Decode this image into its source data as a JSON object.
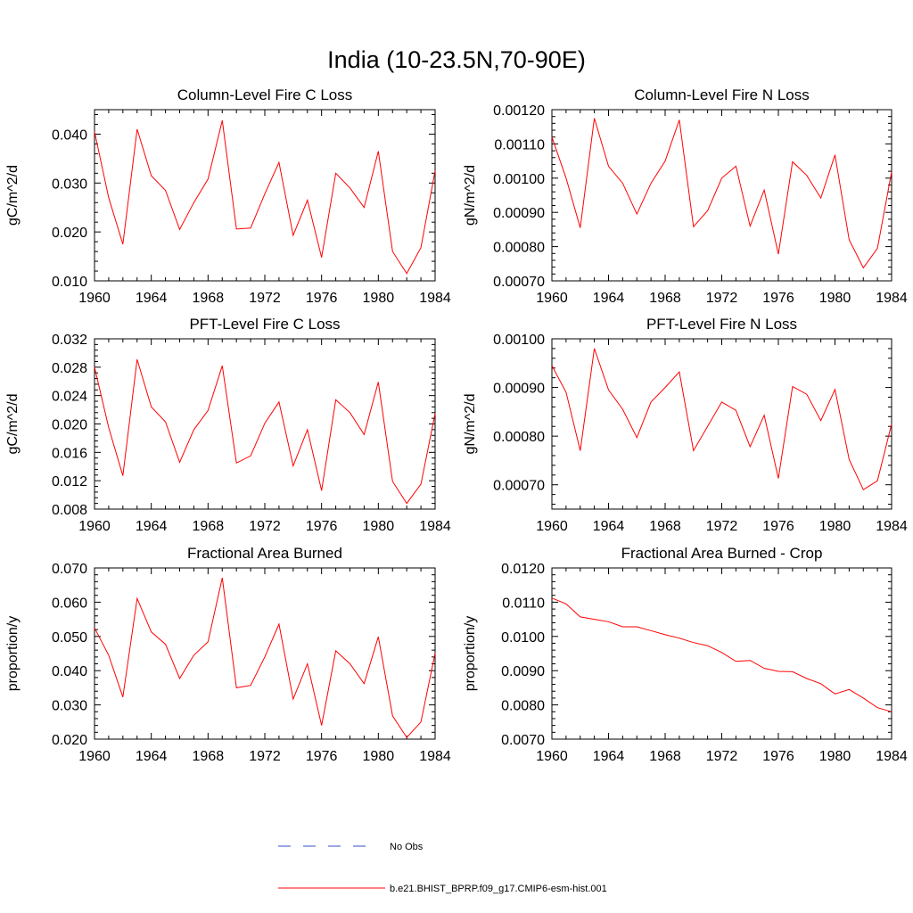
{
  "page_title": "India (10-23.5N,70-90E)",
  "colors": {
    "model": "#ff0000",
    "obs": "#3a4fc4",
    "axis": "#000000"
  },
  "legend": {
    "obs_label": "No Obs",
    "model_label": "b.e21.BHIST_BPRP.f09_g17.CMIP6-esm-hist.001"
  },
  "chart_data": [
    {
      "type": "line",
      "title": "Column-Level Fire C Loss",
      "ylabel": "gC/m^2/d",
      "xlim": [
        1960,
        1984
      ],
      "ylim": [
        0.01,
        0.045
      ],
      "x_ticks": [
        "1960",
        "1964",
        "1968",
        "1972",
        "1976",
        "1980",
        "1984"
      ],
      "y_ticks": [
        "0.010",
        "0.020",
        "0.030",
        "0.040"
      ],
      "y_tick_values": [
        0.01,
        0.02,
        0.03,
        0.04
      ],
      "x": [
        1960,
        1961,
        1962,
        1963,
        1964,
        1965,
        1966,
        1967,
        1968,
        1969,
        1970,
        1971,
        1972,
        1973,
        1974,
        1975,
        1976,
        1977,
        1978,
        1979,
        1980,
        1981,
        1982,
        1983,
        1984
      ],
      "series": [
        {
          "name": "b.e21.BHIST_BPRP.f09_g17.CMIP6-esm-hist.001",
          "values": [
            0.0405,
            0.027,
            0.0175,
            0.041,
            0.0315,
            0.0285,
            0.0205,
            0.026,
            0.0308,
            0.0428,
            0.0206,
            0.0208,
            0.0278,
            0.0342,
            0.0193,
            0.0265,
            0.0148,
            0.032,
            0.029,
            0.025,
            0.0365,
            0.016,
            0.0115,
            0.0168,
            0.0325
          ]
        }
      ]
    },
    {
      "type": "line",
      "title": "Column-Level Fire N Loss",
      "ylabel": "gN/m^2/d",
      "xlim": [
        1960,
        1984
      ],
      "ylim": [
        0.0007,
        0.0012
      ],
      "x_ticks": [
        "1960",
        "1964",
        "1968",
        "1972",
        "1976",
        "1980",
        "1984"
      ],
      "y_ticks": [
        "0.00070",
        "0.00080",
        "0.00090",
        "0.00100",
        "0.00110",
        "0.00120"
      ],
      "y_tick_values": [
        0.0007,
        0.0008,
        0.0009,
        0.001,
        0.0011,
        0.0012
      ],
      "x": [
        1960,
        1961,
        1962,
        1963,
        1964,
        1965,
        1966,
        1967,
        1968,
        1969,
        1970,
        1971,
        1972,
        1973,
        1974,
        1975,
        1976,
        1977,
        1978,
        1979,
        1980,
        1981,
        1982,
        1983,
        1984
      ],
      "series": [
        {
          "name": "b.e21.BHIST_BPRP.f09_g17.CMIP6-esm-hist.001",
          "values": [
            0.00112,
            0.001,
            0.000855,
            0.001175,
            0.001035,
            0.000985,
            0.000895,
            0.000985,
            0.00105,
            0.00117,
            0.000858,
            0.000905,
            0.001,
            0.001035,
            0.00086,
            0.000965,
            0.000778,
            0.001048,
            0.001008,
            0.000942,
            0.001068,
            0.00082,
            0.000738,
            0.000795,
            0.001018
          ]
        }
      ]
    },
    {
      "type": "line",
      "title": "PFT-Level Fire C Loss",
      "ylabel": "gC/m^2/d",
      "xlim": [
        1960,
        1984
      ],
      "ylim": [
        0.008,
        0.032
      ],
      "x_ticks": [
        "1960",
        "1964",
        "1968",
        "1972",
        "1976",
        "1980",
        "1984"
      ],
      "y_ticks": [
        "0.008",
        "0.012",
        "0.016",
        "0.020",
        "0.024",
        "0.028",
        "0.032"
      ],
      "y_tick_values": [
        0.008,
        0.012,
        0.016,
        0.02,
        0.024,
        0.028,
        0.032
      ],
      "x": [
        1960,
        1961,
        1962,
        1963,
        1964,
        1965,
        1966,
        1967,
        1968,
        1969,
        1970,
        1971,
        1972,
        1973,
        1974,
        1975,
        1976,
        1977,
        1978,
        1979,
        1980,
        1981,
        1982,
        1983,
        1984
      ],
      "series": [
        {
          "name": "b.e21.BHIST_BPRP.f09_g17.CMIP6-esm-hist.001",
          "values": [
            0.028,
            0.0195,
            0.0127,
            0.0291,
            0.0224,
            0.0203,
            0.0146,
            0.0192,
            0.0219,
            0.0282,
            0.0145,
            0.0155,
            0.0201,
            0.0231,
            0.0141,
            0.0192,
            0.0106,
            0.0234,
            0.0216,
            0.0185,
            0.0259,
            0.0119,
            0.0088,
            0.0115,
            0.0215
          ]
        }
      ]
    },
    {
      "type": "line",
      "title": "PFT-Level Fire N Loss",
      "ylabel": "gN/m^2/d",
      "xlim": [
        1960,
        1984
      ],
      "ylim": [
        0.00065,
        0.001
      ],
      "x_ticks": [
        "1960",
        "1964",
        "1968",
        "1972",
        "1976",
        "1980",
        "1984"
      ],
      "y_ticks": [
        "0.00070",
        "0.00080",
        "0.00090",
        "0.00100"
      ],
      "y_tick_values": [
        0.0007,
        0.0008,
        0.0009,
        0.001
      ],
      "x": [
        1960,
        1961,
        1962,
        1963,
        1964,
        1965,
        1966,
        1967,
        1968,
        1969,
        1970,
        1971,
        1972,
        1973,
        1974,
        1975,
        1976,
        1977,
        1978,
        1979,
        1980,
        1981,
        1982,
        1983,
        1984
      ],
      "series": [
        {
          "name": "b.e21.BHIST_BPRP.f09_g17.CMIP6-esm-hist.001",
          "values": [
            0.000945,
            0.00089,
            0.00077,
            0.00098,
            0.000895,
            0.000855,
            0.000797,
            0.00087,
            0.0009,
            0.000932,
            0.00077,
            0.00082,
            0.00087,
            0.000853,
            0.000778,
            0.000843,
            0.000713,
            0.000902,
            0.000886,
            0.000832,
            0.000896,
            0.000752,
            0.00069,
            0.000708,
            0.000825
          ]
        }
      ]
    },
    {
      "type": "line",
      "title": "Fractional Area Burned",
      "ylabel": "proportion/y",
      "xlim": [
        1960,
        1984
      ],
      "ylim": [
        0.02,
        0.07
      ],
      "x_ticks": [
        "1960",
        "1964",
        "1968",
        "1972",
        "1976",
        "1980",
        "1984"
      ],
      "y_ticks": [
        "0.020",
        "0.030",
        "0.040",
        "0.050",
        "0.060",
        "0.070"
      ],
      "y_tick_values": [
        0.02,
        0.03,
        0.04,
        0.05,
        0.06,
        0.07
      ],
      "x": [
        1960,
        1961,
        1962,
        1963,
        1964,
        1965,
        1966,
        1967,
        1968,
        1969,
        1970,
        1971,
        1972,
        1973,
        1974,
        1975,
        1976,
        1977,
        1978,
        1979,
        1980,
        1981,
        1982,
        1983,
        1984
      ],
      "series": [
        {
          "name": "b.e21.BHIST_BPRP.f09_g17.CMIP6-esm-hist.001",
          "values": [
            0.0525,
            0.0445,
            0.0323,
            0.0611,
            0.0513,
            0.0477,
            0.0377,
            0.0445,
            0.0484,
            0.0671,
            0.035,
            0.0357,
            0.044,
            0.0536,
            0.0317,
            0.042,
            0.024,
            0.0458,
            0.042,
            0.0362,
            0.0499,
            0.0268,
            0.0205,
            0.025,
            0.0451
          ]
        }
      ]
    },
    {
      "type": "line",
      "title": "Fractional Area Burned - Crop",
      "ylabel": "proportion/y",
      "xlim": [
        1960,
        1984
      ],
      "ylim": [
        0.007,
        0.012
      ],
      "x_ticks": [
        "1960",
        "1964",
        "1968",
        "1972",
        "1976",
        "1980",
        "1984"
      ],
      "y_ticks": [
        "0.0070",
        "0.0080",
        "0.0090",
        "0.0100",
        "0.0110",
        "0.0120"
      ],
      "y_tick_values": [
        0.007,
        0.008,
        0.009,
        0.01,
        0.011,
        0.012
      ],
      "x": [
        1960,
        1961,
        1962,
        1963,
        1964,
        1965,
        1966,
        1967,
        1968,
        1969,
        1970,
        1971,
        1972,
        1973,
        1974,
        1975,
        1976,
        1977,
        1978,
        1979,
        1980,
        1981,
        1982,
        1983,
        1984
      ],
      "series": [
        {
          "name": "b.e21.BHIST_BPRP.f09_g17.CMIP6-esm-hist.001",
          "values": [
            0.01112,
            0.01095,
            0.01057,
            0.0105,
            0.01043,
            0.01028,
            0.01028,
            0.01017,
            0.01005,
            0.00995,
            0.00982,
            0.00973,
            0.00953,
            0.00927,
            0.0093,
            0.00907,
            0.00898,
            0.00897,
            0.00877,
            0.00862,
            0.00832,
            0.00845,
            0.0082,
            0.00792,
            0.0078
          ]
        }
      ]
    }
  ]
}
